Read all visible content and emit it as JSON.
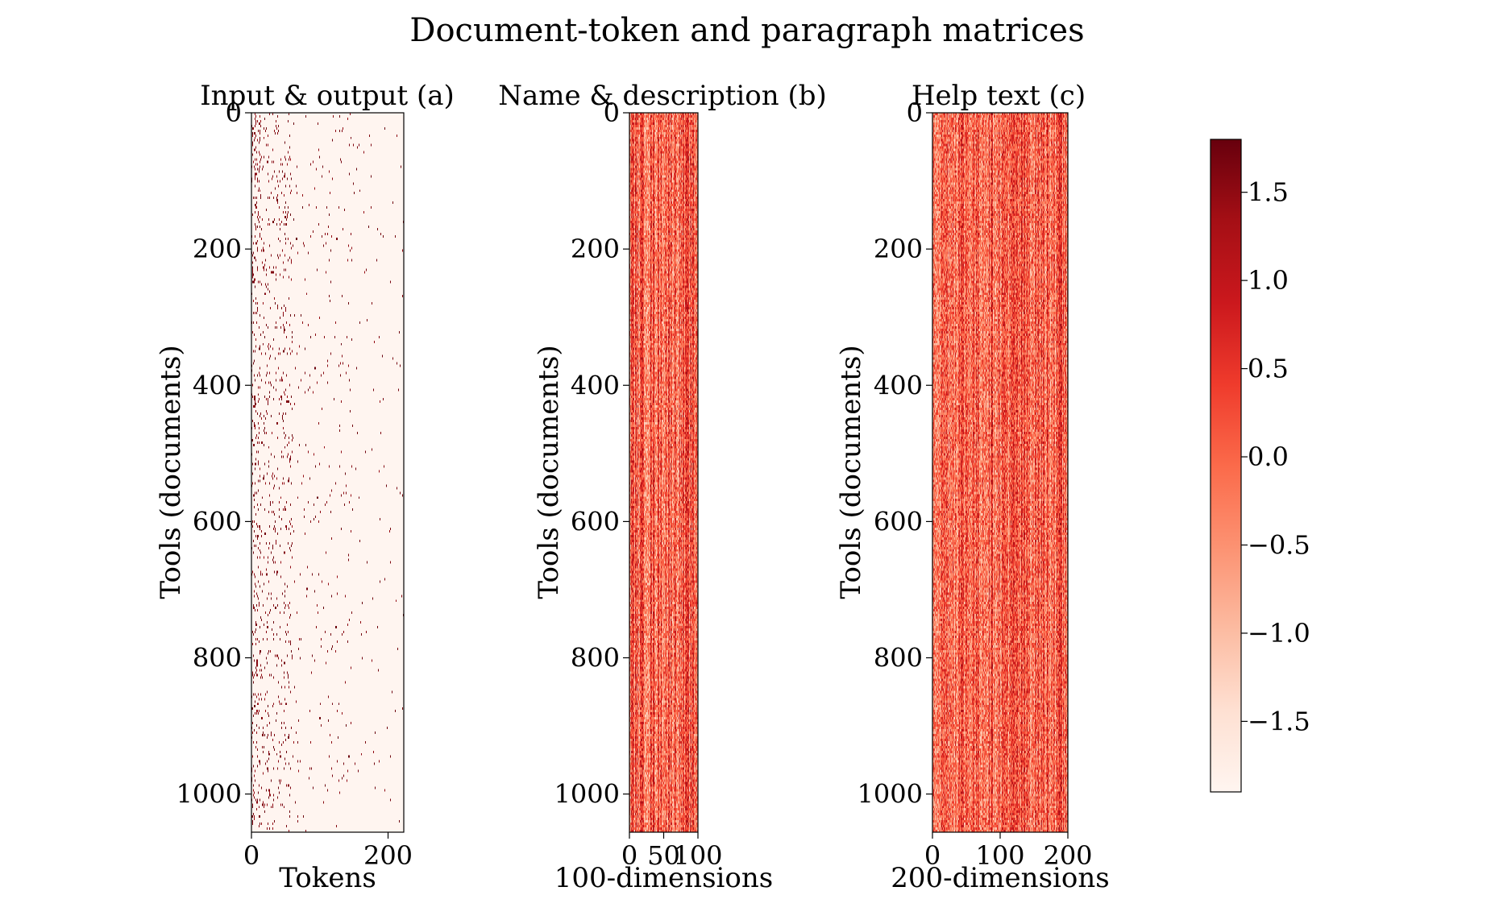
{
  "figure_title": "Document-token and paragraph matrices",
  "colors": {
    "colormap": [
      "#fff5f0",
      "#fee0d2",
      "#fcbba1",
      "#fc9272",
      "#fb6a4a",
      "#ef3b2c",
      "#cb181d",
      "#a50f15",
      "#67000d"
    ],
    "frame": "#000000"
  },
  "chart_data": [
    {
      "type": "heatmap",
      "title": "Input & output (a)",
      "xlabel": "Tokens",
      "ylabel": "Tools (documents)",
      "rows": 1056,
      "cols": 223,
      "xlim": [
        0,
        223
      ],
      "ylim": [
        1056,
        0
      ],
      "xticks": [
        0,
        200
      ],
      "yticks": [
        0,
        200,
        400,
        600,
        800,
        1000
      ],
      "value_range": [
        -1.9,
        1.8
      ],
      "pattern": "sparse binary matrix, mostly minimum value, dense dark marks in first ~60 token columns"
    },
    {
      "type": "heatmap",
      "title": "Name & description (b)",
      "xlabel": "100-dimensions",
      "ylabel": "Tools (documents)",
      "rows": 1056,
      "cols": 100,
      "xlim": [
        0,
        100
      ],
      "ylim": [
        1056,
        0
      ],
      "xticks": [
        0,
        50,
        100
      ],
      "yticks": [
        0,
        200,
        400,
        600,
        800,
        1000
      ],
      "value_range": [
        -1.9,
        1.8
      ],
      "pattern": "dense matrix, values centred near 0 with column-wise variation"
    },
    {
      "type": "heatmap",
      "title": "Help text (c)",
      "xlabel": "200-dimensions",
      "ylabel": "Tools (documents)",
      "rows": 1056,
      "cols": 200,
      "xlim": [
        0,
        200
      ],
      "ylim": [
        1056,
        0
      ],
      "xticks": [
        0,
        100,
        200
      ],
      "yticks": [
        0,
        200,
        400,
        600,
        800,
        1000
      ],
      "value_range": [
        -1.9,
        1.8
      ],
      "pattern": "dense matrix, values centred near 0 with column-wise variation"
    }
  ],
  "colorbar": {
    "range": [
      -1.9,
      1.8
    ],
    "ticks": [
      1.5,
      1.0,
      0.5,
      0.0,
      -0.5,
      -1.0,
      -1.5
    ],
    "tick_labels": [
      "1.5",
      "1.0",
      "0.5",
      "0.0",
      "−0.5",
      "−1.0",
      "−1.5"
    ]
  }
}
